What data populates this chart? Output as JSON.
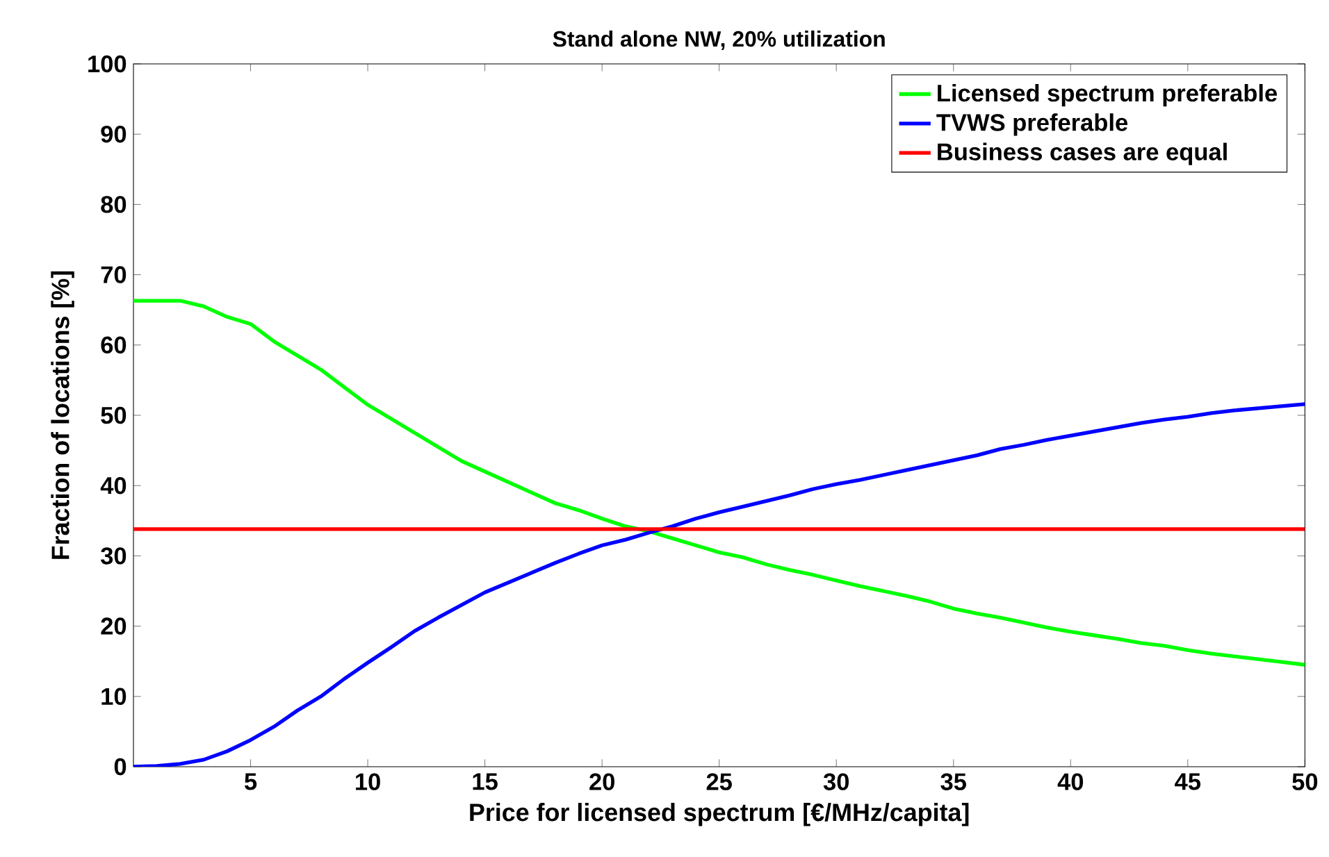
{
  "chart_data": {
    "type": "line",
    "title": "Stand alone NW, 20% utilization",
    "xlabel": "Price for licensed spectrum [€/MHz/capita]",
    "ylabel": "Fraction of locations [%]",
    "xlim": [
      0,
      50
    ],
    "ylim": [
      0,
      100
    ],
    "xticks": [
      5,
      10,
      15,
      20,
      25,
      30,
      35,
      40,
      45,
      50
    ],
    "yticks": [
      0,
      10,
      20,
      30,
      40,
      50,
      60,
      70,
      80,
      90,
      100
    ],
    "legend": "top right",
    "series": [
      {
        "name": "Licensed spectrum preferable",
        "color": "#00ff00",
        "x": [
          0,
          1,
          2,
          3,
          4,
          5,
          6,
          7,
          8,
          9,
          10,
          11,
          12,
          13,
          14,
          15,
          16,
          17,
          18,
          19,
          20,
          21,
          22,
          23,
          24,
          25,
          26,
          27,
          28,
          29,
          30,
          31,
          32,
          33,
          34,
          35,
          36,
          37,
          38,
          39,
          40,
          41,
          42,
          43,
          44,
          45,
          46,
          47,
          48,
          49,
          50
        ],
        "values": [
          66.3,
          66.3,
          66.3,
          65.5,
          64,
          63,
          60.5,
          58.5,
          56.5,
          54,
          51.5,
          49.5,
          47.5,
          45.5,
          43.5,
          42,
          40.5,
          39,
          37.5,
          36.5,
          35.3,
          34.2,
          33.5,
          32.5,
          31.5,
          30.5,
          29.8,
          28.8,
          28,
          27.3,
          26.5,
          25.7,
          25,
          24.3,
          23.5,
          22.5,
          21.8,
          21.2,
          20.5,
          19.8,
          19.2,
          18.7,
          18.2,
          17.6,
          17.2,
          16.6,
          16.1,
          15.7,
          15.3,
          14.9,
          14.5
        ]
      },
      {
        "name": "TVWS preferable",
        "color": "#0000ff",
        "x": [
          0,
          1,
          2,
          3,
          4,
          5,
          6,
          7,
          8,
          9,
          10,
          11,
          12,
          13,
          14,
          15,
          16,
          17,
          18,
          19,
          20,
          21,
          22,
          23,
          24,
          25,
          26,
          27,
          28,
          29,
          30,
          31,
          32,
          33,
          34,
          35,
          36,
          37,
          38,
          39,
          40,
          41,
          42,
          43,
          44,
          45,
          46,
          47,
          48,
          49,
          50
        ],
        "values": [
          0,
          0.1,
          0.4,
          1,
          2.2,
          3.8,
          5.7,
          8,
          10,
          12.5,
          14.8,
          17,
          19.3,
          21.2,
          23,
          24.8,
          26.2,
          27.6,
          29,
          30.3,
          31.5,
          32.3,
          33.3,
          34.2,
          35.3,
          36.2,
          37,
          37.8,
          38.6,
          39.5,
          40.2,
          40.8,
          41.5,
          42.2,
          42.9,
          43.6,
          44.3,
          45.2,
          45.8,
          46.5,
          47.1,
          47.7,
          48.3,
          48.9,
          49.4,
          49.8,
          50.3,
          50.7,
          51,
          51.3,
          51.6
        ]
      },
      {
        "name": "Business cases are equal",
        "color": "#ff0000",
        "x": [
          0,
          50
        ],
        "values": [
          33.8,
          33.8
        ]
      }
    ]
  }
}
